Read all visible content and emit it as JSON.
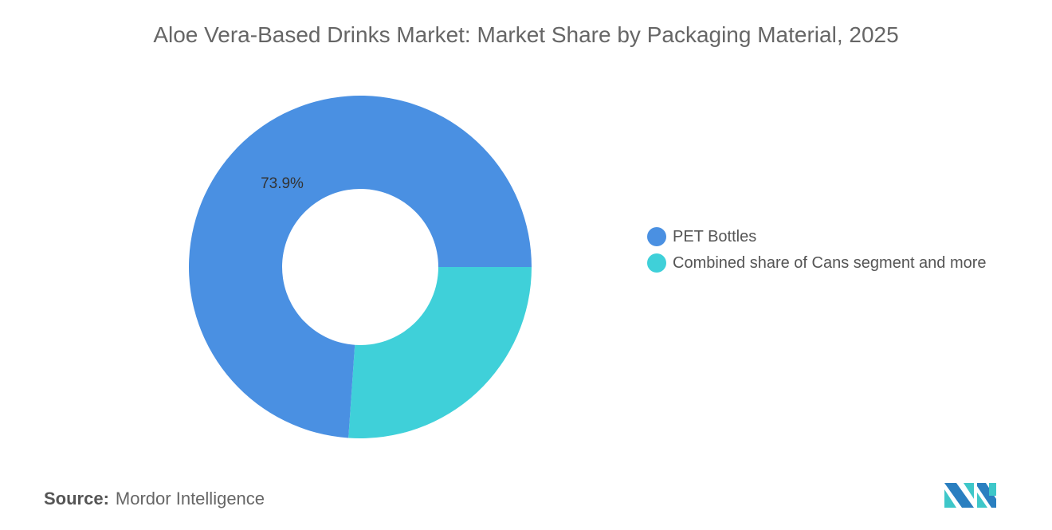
{
  "title": "Aloe Vera-Based Drinks Market: Market Share by Packaging Material, 2025",
  "source": {
    "label": "Source:",
    "value": "Mordor Intelligence"
  },
  "logo": {
    "name": "mordor-intelligence-logo",
    "colors": [
      "#2a7fc0",
      "#3ec7c9"
    ]
  },
  "chart_data": {
    "type": "pie",
    "variant": "donut",
    "title": "Aloe Vera-Based Drinks Market: Market Share by Packaging Material, 2025",
    "slices": [
      {
        "name": "PET Bottles",
        "value": 73.9,
        "color": "#4a90e2",
        "label": "73.9%"
      },
      {
        "name": "Combined share of Cans segment and more",
        "value": 26.1,
        "color": "#3fd0d9",
        "label": ""
      }
    ],
    "legend_placement": "right"
  }
}
